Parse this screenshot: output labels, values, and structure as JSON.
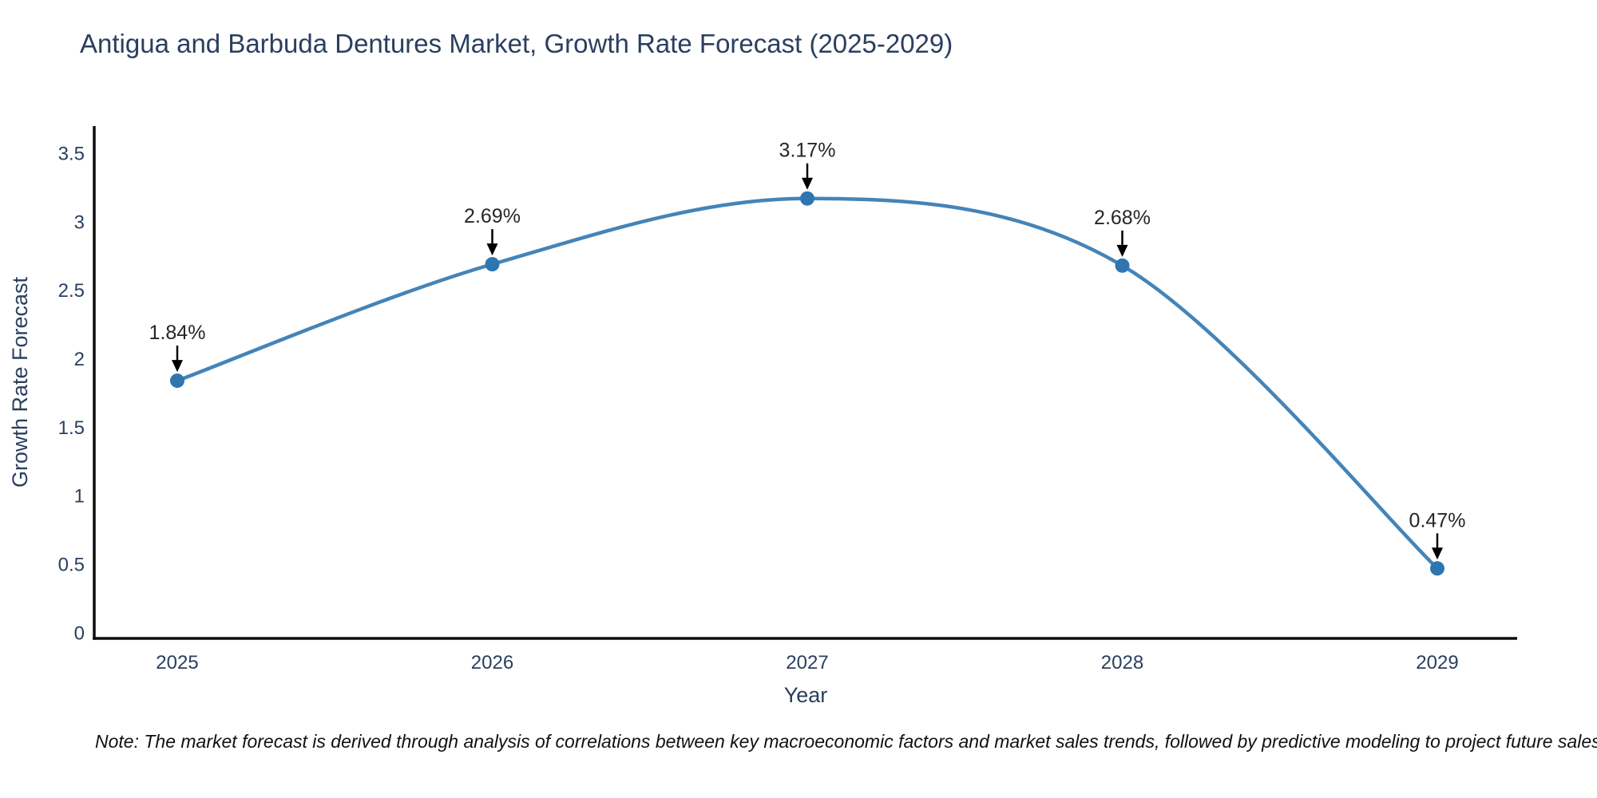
{
  "page": {
    "note": "Note: The market forecast is derived through analysis of correlations between key macroeconomic factors and market sales trends, followed by predictive modeling to project future sales"
  },
  "chart_data": {
    "type": "line",
    "title": "Antigua and Barbuda Dentures Market, Growth Rate Forecast (2025-2029)",
    "xlabel": "Year",
    "ylabel": "Growth Rate Forecast",
    "x": [
      2025,
      2026,
      2027,
      2028,
      2029
    ],
    "series": [
      {
        "name": "Growth Rate Forecast",
        "values": [
          1.84,
          2.69,
          3.17,
          2.68,
          0.47
        ]
      }
    ],
    "point_labels": [
      "1.84%",
      "2.69%",
      "3.17%",
      "2.68%",
      "0.47%"
    ],
    "ylim": [
      0,
      3.5
    ],
    "yticks": [
      0,
      0.5,
      1,
      1.5,
      2,
      2.5,
      3,
      3.5
    ],
    "grid": false,
    "legend": "none",
    "line_shape": "spline",
    "colors": {
      "line": "#4484b8",
      "marker": "#2f76b0",
      "axis": "#0d0d0d",
      "axis_text": "#2a3f5f",
      "annotation_text": "#262626",
      "arrow": "#000000"
    }
  }
}
